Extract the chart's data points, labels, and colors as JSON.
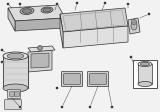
{
  "bg": "#f2f2f2",
  "dc": "#333333",
  "mgc": "#888888",
  "lgc": "#bbbbbb",
  "wc": "#ffffff",
  "seat_fill": "#e0e0e0",
  "seat_top": "#d0d0d0",
  "cover_fill": "#dcdcdc",
  "cyl_fill": "#d8d8d8",
  "cyl_top_fill": "#ececec",
  "dark_fill": "#b0b0b0",
  "figsize": [
    1.6,
    1.12
  ],
  "dpi": 100
}
